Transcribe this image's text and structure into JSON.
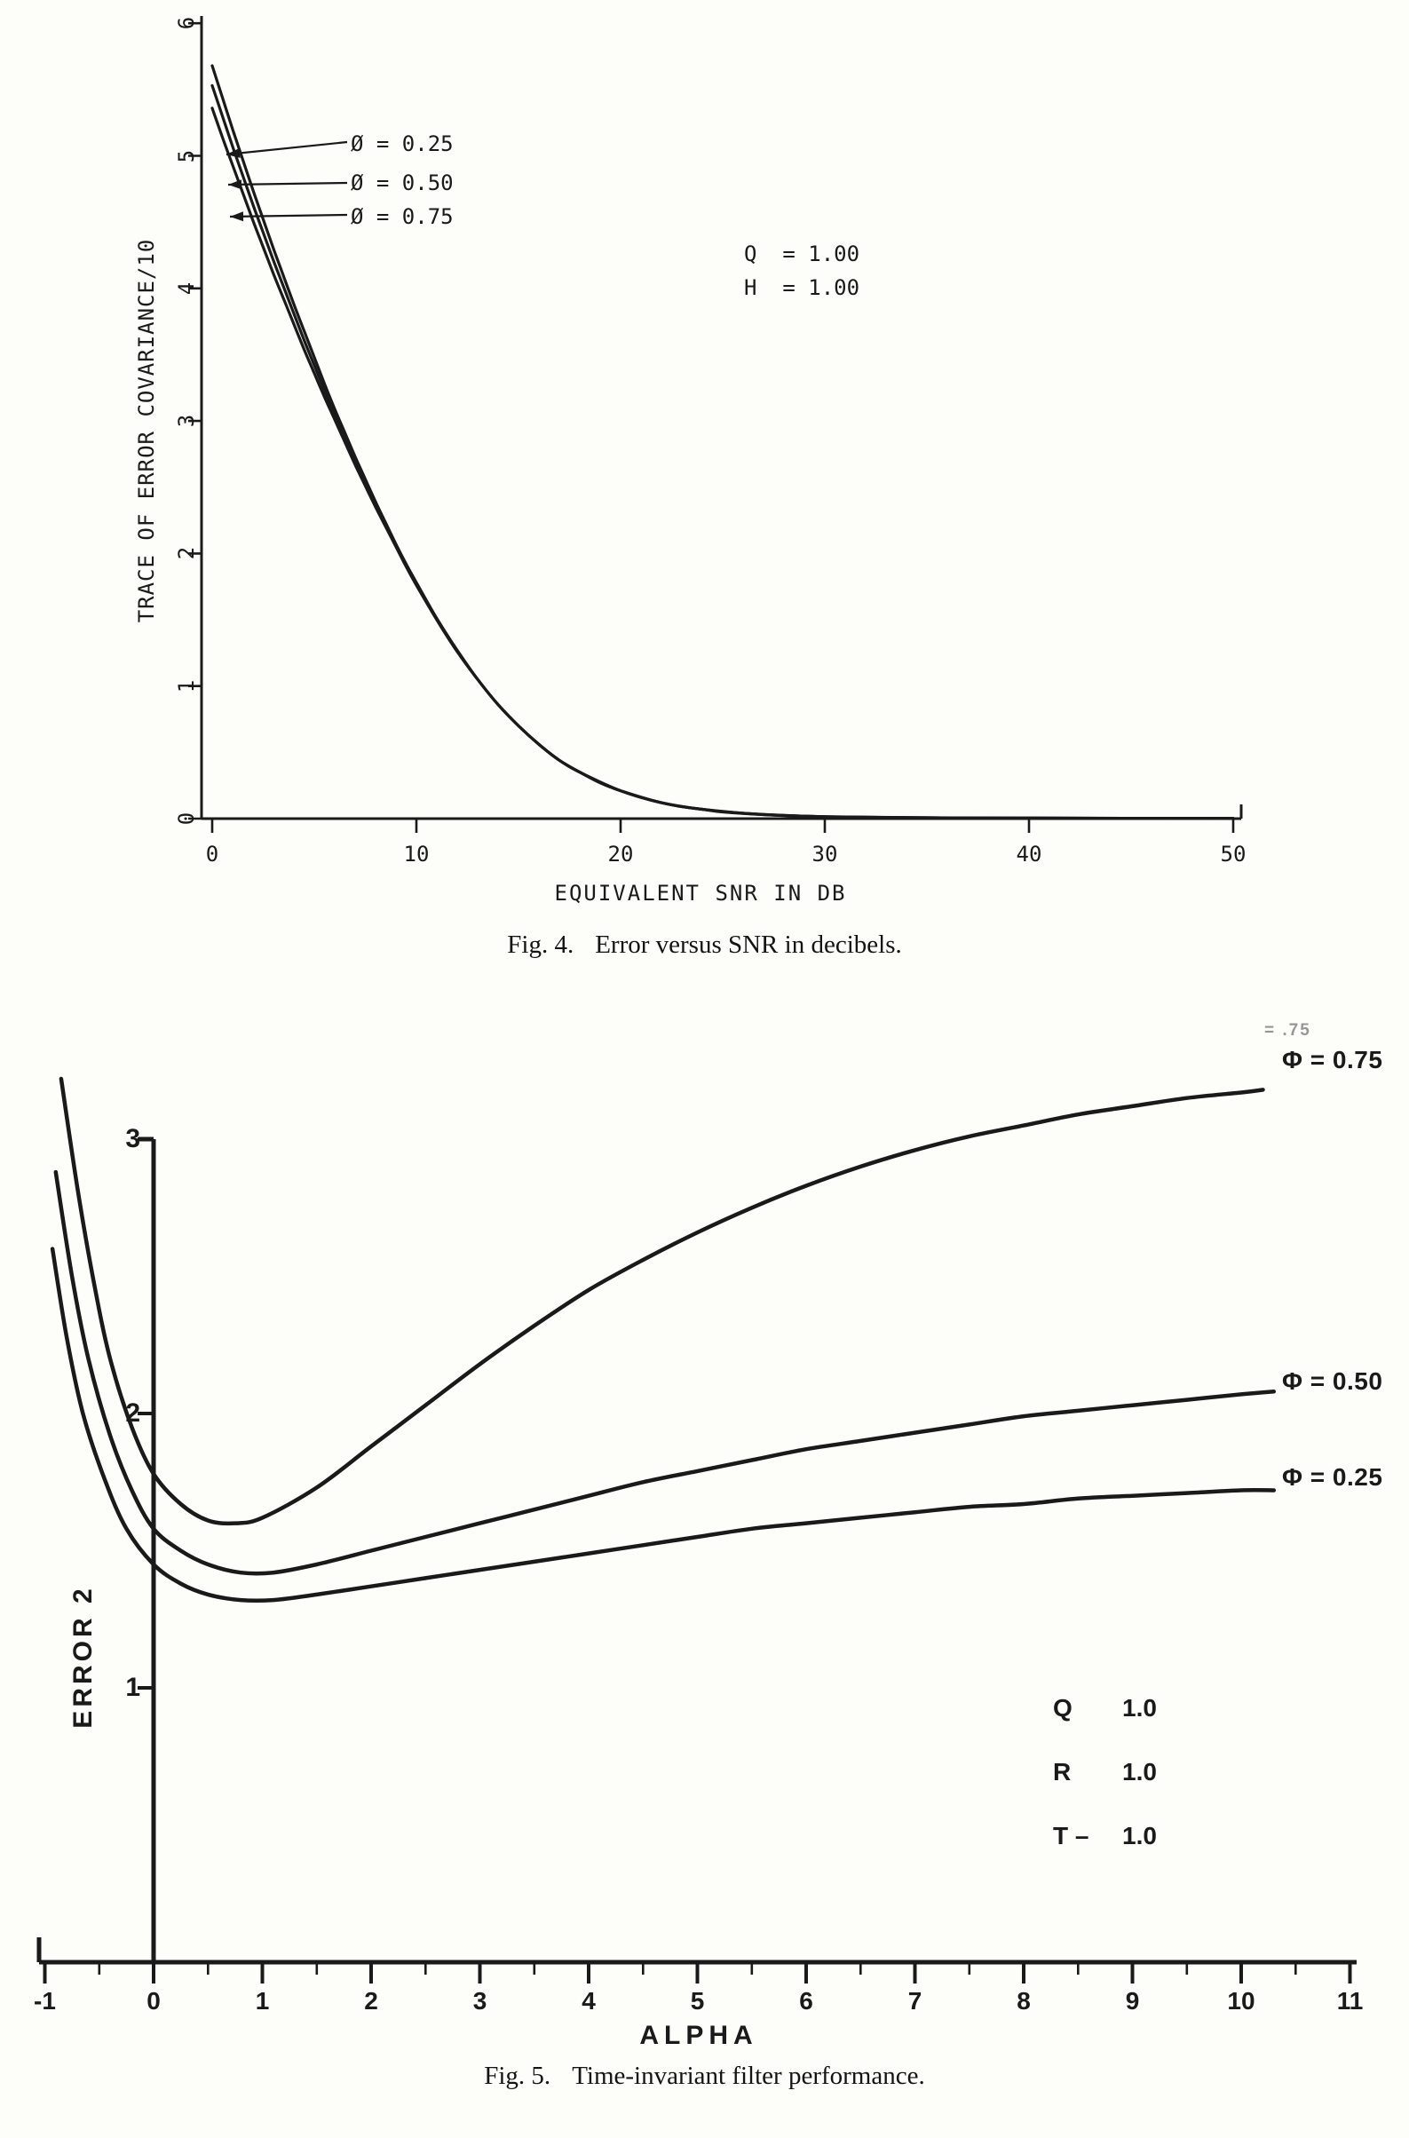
{
  "page": {
    "background": "#fdfdfa",
    "ink_color": "#1a1a1a"
  },
  "chart_data": [
    {
      "type": "line",
      "figure_label": "Fig. 4.",
      "caption": "Error versus SNR in decibels.",
      "xlabel": "EQUIVALENT SNR IN DB",
      "ylabel": "TRACE OF ERROR COVARIANCE/10",
      "xlim": [
        0,
        50
      ],
      "ylim": [
        0,
        6
      ],
      "xticks": [
        0,
        10,
        20,
        30,
        40,
        50
      ],
      "yticks": [
        0,
        1,
        2,
        3,
        4,
        5,
        6
      ],
      "grid": false,
      "annotations": [
        "Q  = 1.00",
        "H  = 1.00"
      ],
      "series": [
        {
          "name": "Ø = 0.25",
          "points": [
            [
              0,
              5.68
            ],
            [
              0.5,
              5.44
            ],
            [
              1,
              5.2
            ],
            [
              1.5,
              4.97
            ],
            [
              2,
              4.74
            ],
            [
              2.5,
              4.52
            ],
            [
              3,
              4.3
            ],
            [
              3.5,
              4.09
            ],
            [
              4,
              3.88
            ],
            [
              4.5,
              3.68
            ],
            [
              5,
              3.48
            ],
            [
              5.5,
              3.28
            ],
            [
              6,
              3.09
            ],
            [
              6.5,
              2.91
            ],
            [
              7,
              2.73
            ],
            [
              7.5,
              2.56
            ],
            [
              8,
              2.39
            ],
            [
              8.5,
              2.23
            ],
            [
              9,
              2.07
            ],
            [
              9.5,
              1.92
            ],
            [
              10,
              1.78
            ],
            [
              11,
              1.51
            ],
            [
              12,
              1.27
            ],
            [
              13,
              1.05
            ],
            [
              14,
              0.86
            ],
            [
              15,
              0.7
            ],
            [
              16,
              0.56
            ],
            [
              17,
              0.44
            ],
            [
              18,
              0.35
            ],
            [
              19,
              0.27
            ],
            [
              20,
              0.21
            ],
            [
              21,
              0.16
            ],
            [
              22,
              0.12
            ],
            [
              23,
              0.09
            ],
            [
              24,
              0.07
            ],
            [
              25,
              0.05
            ],
            [
              27,
              0.03
            ],
            [
              30,
              0.015
            ],
            [
              34,
              0.008
            ],
            [
              40,
              0.004
            ],
            [
              45,
              0.002
            ],
            [
              50,
              0.002
            ]
          ]
        },
        {
          "name": "Ø = 0.50",
          "points": [
            [
              0,
              5.53
            ],
            [
              0.5,
              5.3
            ],
            [
              1,
              5.07
            ],
            [
              1.5,
              4.85
            ],
            [
              2,
              4.63
            ],
            [
              2.5,
              4.42
            ],
            [
              3,
              4.21
            ],
            [
              3.5,
              4.01
            ],
            [
              4,
              3.81
            ],
            [
              4.5,
              3.61
            ],
            [
              5,
              3.42
            ],
            [
              5.5,
              3.23
            ],
            [
              6,
              3.05
            ],
            [
              6.5,
              2.87
            ],
            [
              7,
              2.7
            ],
            [
              7.5,
              2.53
            ],
            [
              8,
              2.37
            ],
            [
              8.5,
              2.21
            ],
            [
              9,
              2.06
            ],
            [
              9.5,
              1.91
            ],
            [
              10,
              1.77
            ],
            [
              11,
              1.5
            ],
            [
              12,
              1.26
            ],
            [
              13,
              1.05
            ],
            [
              14,
              0.86
            ],
            [
              15,
              0.7
            ],
            [
              16,
              0.56
            ],
            [
              17,
              0.44
            ],
            [
              18,
              0.35
            ],
            [
              19,
              0.27
            ],
            [
              20,
              0.21
            ],
            [
              22,
              0.12
            ],
            [
              24,
              0.07
            ],
            [
              26,
              0.04
            ],
            [
              30,
              0.015
            ],
            [
              35,
              0.007
            ],
            [
              40,
              0.004
            ],
            [
              50,
              0.002
            ]
          ]
        },
        {
          "name": "Ø = 0.75",
          "points": [
            [
              0,
              5.36
            ],
            [
              0.5,
              5.14
            ],
            [
              1,
              4.93
            ],
            [
              1.5,
              4.72
            ],
            [
              2,
              4.51
            ],
            [
              2.5,
              4.31
            ],
            [
              3,
              4.11
            ],
            [
              3.5,
              3.92
            ],
            [
              4,
              3.73
            ],
            [
              4.5,
              3.54
            ],
            [
              5,
              3.36
            ],
            [
              5.5,
              3.18
            ],
            [
              6,
              3.01
            ],
            [
              6.5,
              2.84
            ],
            [
              7,
              2.67
            ],
            [
              7.5,
              2.51
            ],
            [
              8,
              2.35
            ],
            [
              8.5,
              2.2
            ],
            [
              9,
              2.05
            ],
            [
              9.5,
              1.9
            ],
            [
              10,
              1.76
            ],
            [
              11,
              1.5
            ],
            [
              12,
              1.26
            ],
            [
              13,
              1.05
            ],
            [
              14,
              0.86
            ],
            [
              15,
              0.7
            ],
            [
              16,
              0.56
            ],
            [
              17,
              0.44
            ],
            [
              18,
              0.35
            ],
            [
              20,
              0.21
            ],
            [
              22,
              0.12
            ],
            [
              24,
              0.07
            ],
            [
              27,
              0.03
            ],
            [
              30,
              0.015
            ],
            [
              35,
              0.007
            ],
            [
              40,
              0.004
            ],
            [
              50,
              0.002
            ]
          ]
        }
      ]
    },
    {
      "type": "line",
      "figure_label": "Fig. 5.",
      "caption": "Time-invariant filter performance.",
      "xlabel": "ALPHA",
      "ylabel": "ERROR 2",
      "xlim": [
        -1,
        11
      ],
      "ylim": [
        0,
        3.4
      ],
      "xticks": [
        -1,
        0,
        1,
        2,
        3,
        4,
        5,
        6,
        7,
        8,
        9,
        10,
        11
      ],
      "yticks": [
        1,
        2,
        3
      ],
      "grid": false,
      "ghost_label": "= .75",
      "annotations": [
        {
          "label": "Q",
          "value": "1.0"
        },
        {
          "label": "R",
          "value": "1.0"
        },
        {
          "label": "T –",
          "value": "1.0"
        }
      ],
      "series": [
        {
          "name": "Φ = 0.75",
          "points": [
            [
              -0.85,
              3.22
            ],
            [
              -0.7,
              2.82
            ],
            [
              -0.55,
              2.48
            ],
            [
              -0.4,
              2.2
            ],
            [
              -0.2,
              1.95
            ],
            [
              0,
              1.78
            ],
            [
              0.25,
              1.67
            ],
            [
              0.5,
              1.61
            ],
            [
              0.75,
              1.6
            ],
            [
              1,
              1.62
            ],
            [
              1.5,
              1.73
            ],
            [
              2,
              1.88
            ],
            [
              2.5,
              2.03
            ],
            [
              3,
              2.18
            ],
            [
              3.5,
              2.32
            ],
            [
              4,
              2.45
            ],
            [
              4.5,
              2.56
            ],
            [
              5,
              2.66
            ],
            [
              5.5,
              2.75
            ],
            [
              6,
              2.83
            ],
            [
              6.5,
              2.9
            ],
            [
              7,
              2.96
            ],
            [
              7.5,
              3.01
            ],
            [
              8,
              3.05
            ],
            [
              8.5,
              3.09
            ],
            [
              9,
              3.12
            ],
            [
              9.5,
              3.15
            ],
            [
              10,
              3.17
            ],
            [
              10.2,
              3.18
            ]
          ]
        },
        {
          "name": "Φ = 0.50",
          "points": [
            [
              -0.9,
              2.88
            ],
            [
              -0.75,
              2.5
            ],
            [
              -0.6,
              2.2
            ],
            [
              -0.4,
              1.92
            ],
            [
              -0.2,
              1.72
            ],
            [
              0,
              1.58
            ],
            [
              0.25,
              1.5
            ],
            [
              0.5,
              1.45
            ],
            [
              0.8,
              1.42
            ],
            [
              1.1,
              1.42
            ],
            [
              1.5,
              1.45
            ],
            [
              2,
              1.5
            ],
            [
              2.5,
              1.55
            ],
            [
              3,
              1.6
            ],
            [
              3.5,
              1.65
            ],
            [
              4,
              1.7
            ],
            [
              4.5,
              1.75
            ],
            [
              5,
              1.79
            ],
            [
              5.5,
              1.83
            ],
            [
              6,
              1.87
            ],
            [
              6.5,
              1.9
            ],
            [
              7,
              1.93
            ],
            [
              7.5,
              1.96
            ],
            [
              8,
              1.99
            ],
            [
              8.5,
              2.01
            ],
            [
              9,
              2.03
            ],
            [
              9.5,
              2.05
            ],
            [
              10,
              2.07
            ],
            [
              10.3,
              2.08
            ]
          ]
        },
        {
          "name": "Φ = 0.25",
          "points": [
            [
              -0.93,
              2.6
            ],
            [
              -0.8,
              2.28
            ],
            [
              -0.65,
              2.0
            ],
            [
              -0.45,
              1.76
            ],
            [
              -0.25,
              1.58
            ],
            [
              0,
              1.45
            ],
            [
              0.25,
              1.38
            ],
            [
              0.5,
              1.34
            ],
            [
              0.8,
              1.32
            ],
            [
              1.1,
              1.32
            ],
            [
              1.5,
              1.34
            ],
            [
              2,
              1.37
            ],
            [
              2.5,
              1.4
            ],
            [
              3,
              1.43
            ],
            [
              3.5,
              1.46
            ],
            [
              4,
              1.49
            ],
            [
              4.5,
              1.52
            ],
            [
              5,
              1.55
            ],
            [
              5.5,
              1.58
            ],
            [
              6,
              1.6
            ],
            [
              6.5,
              1.62
            ],
            [
              7,
              1.64
            ],
            [
              7.5,
              1.66
            ],
            [
              8,
              1.67
            ],
            [
              8.5,
              1.69
            ],
            [
              9,
              1.7
            ],
            [
              9.5,
              1.71
            ],
            [
              10,
              1.72
            ],
            [
              10.3,
              1.72
            ]
          ]
        }
      ]
    }
  ]
}
